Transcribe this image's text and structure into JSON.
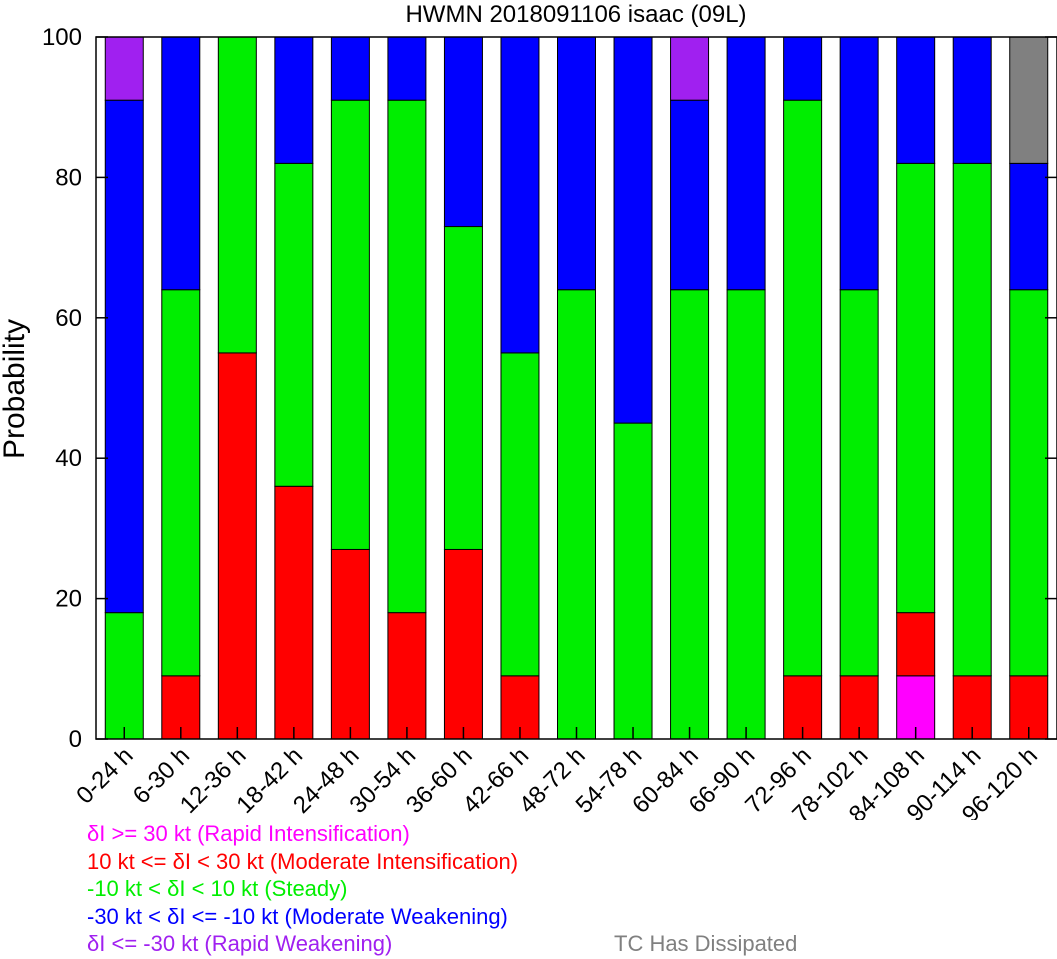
{
  "chart_data": {
    "type": "bar",
    "stacked": true,
    "title": "HWMN 2018091106 isaac (09L)",
    "xlabel": "",
    "ylabel": "Probability",
    "ylim": [
      0,
      100
    ],
    "yticks": [
      0,
      20,
      40,
      60,
      80,
      100
    ],
    "grid": false,
    "categories": [
      "0-24 h",
      "6-30 h",
      "12-36 h",
      "18-42 h",
      "24-48 h",
      "30-54 h",
      "36-60 h",
      "42-66 h",
      "48-72 h",
      "54-78 h",
      "60-84 h",
      "66-90 h",
      "72-96 h",
      "78-102 h",
      "84-108 h",
      "90-114 h",
      "96-120 h"
    ],
    "series": [
      {
        "name": "δI >= 30 kt (Rapid Intensification)",
        "color": "#ff00ff",
        "values": [
          0,
          0,
          0,
          0,
          0,
          0,
          0,
          0,
          0,
          0,
          0,
          0,
          0,
          0,
          9,
          0,
          0
        ]
      },
      {
        "name": "10 kt <= δI < 30 kt (Moderate Intensification)",
        "color": "#ff0000",
        "values": [
          0,
          9,
          55,
          36,
          27,
          18,
          27,
          9,
          0,
          0,
          0,
          0,
          9,
          9,
          9,
          9,
          9
        ]
      },
      {
        "name": "-10 kt < δI < 10 kt (Steady)",
        "color": "#00ee00",
        "values": [
          18,
          55,
          45,
          46,
          64,
          73,
          46,
          46,
          64,
          45,
          64,
          64,
          82,
          55,
          64,
          73,
          55
        ]
      },
      {
        "name": "-30 kt < δI <= -10 kt (Moderate Weakening)",
        "color": "#0000ff",
        "values": [
          73,
          36,
          0,
          18,
          9,
          9,
          27,
          45,
          36,
          55,
          27,
          36,
          9,
          36,
          18,
          18,
          18
        ]
      },
      {
        "name": "δI <= -30 kt (Rapid Weakening)",
        "color": "#a020f0",
        "values": [
          9,
          0,
          0,
          0,
          0,
          0,
          0,
          0,
          0,
          0,
          9,
          0,
          0,
          0,
          0,
          0,
          0
        ]
      },
      {
        "name": "TC Has Dissipated",
        "color": "#808080",
        "values": [
          0,
          0,
          0,
          0,
          0,
          0,
          0,
          0,
          0,
          0,
          0,
          0,
          0,
          0,
          0,
          0,
          18
        ]
      }
    ]
  }
}
